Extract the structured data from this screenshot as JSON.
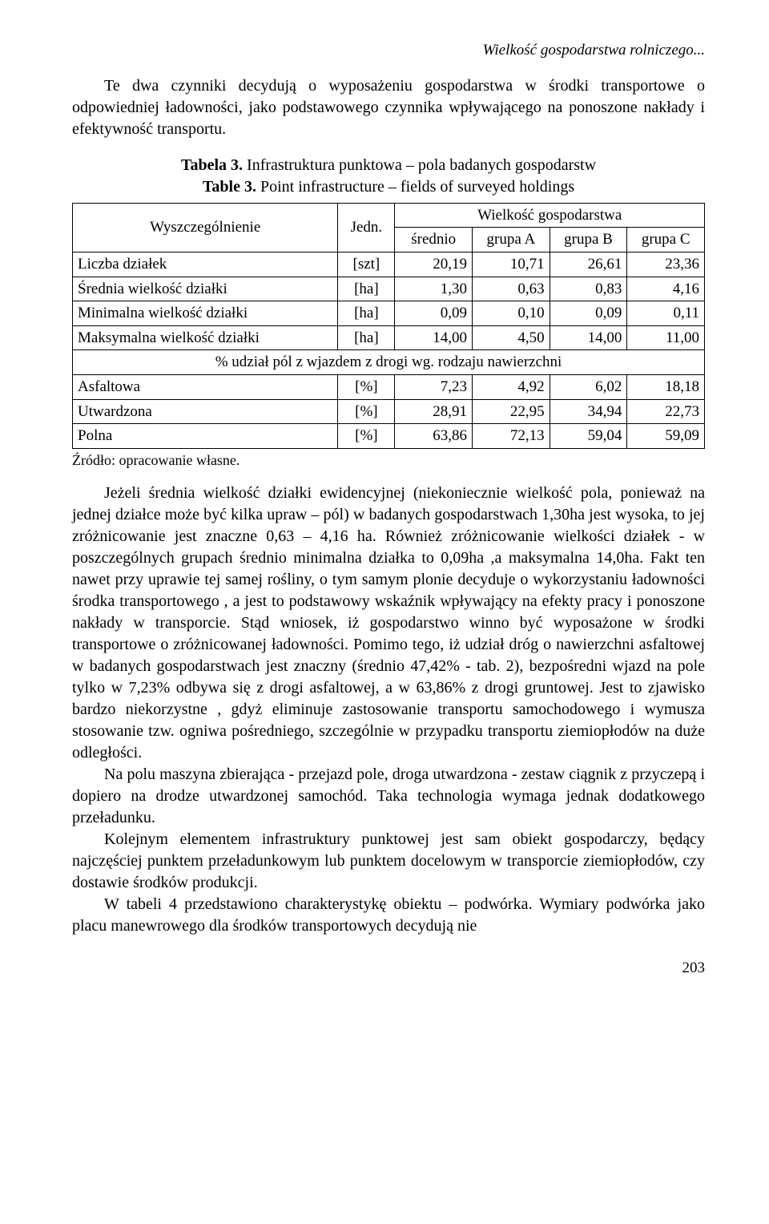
{
  "running_head": "Wielkość gospodarstwa rolniczego...",
  "para1": "Te dwa czynniki decydują o wyposażeniu gospodarstwa w środki transportowe o odpowiedniej ładowności, jako podstawowego czynnika wpływającego na ponoszone nakłady i efektywność transportu.",
  "caption": {
    "label_pl": "Tabela 3.",
    "title_pl": "Infrastruktura punktowa – pola badanych gospodarstw",
    "label_en": "Table 3.",
    "title_en": "Point infrastructure – fields of surveyed holdings"
  },
  "table": {
    "header": {
      "col1": "Wyszczególnienie",
      "col2": "Jedn.",
      "group_header": "Wielkość gospodarstwa",
      "sub": [
        "średnio",
        "grupa A",
        "grupa B",
        "grupa C"
      ]
    },
    "rows_top": [
      {
        "label": "Liczba działek",
        "unit": "[szt]",
        "vals": [
          "20,19",
          "10,71",
          "26,61",
          "23,36"
        ]
      },
      {
        "label": "Średnia wielkość działki",
        "unit": "[ha]",
        "vals": [
          "1,30",
          "0,63",
          "0,83",
          "4,16"
        ]
      },
      {
        "label": "Minimalna wielkość działki",
        "unit": "[ha]",
        "vals": [
          "0,09",
          "0,10",
          "0,09",
          "0,11"
        ]
      },
      {
        "label": "Maksymalna wielkość działki",
        "unit": "[ha]",
        "vals": [
          "14,00",
          "4,50",
          "14,00",
          "11,00"
        ]
      }
    ],
    "mid_span": "% udział pól z wjazdem z drogi wg. rodzaju nawierzchni",
    "rows_bottom": [
      {
        "label": "Asfaltowa",
        "unit": "[%]",
        "vals": [
          "7,23",
          "4,92",
          "6,02",
          "18,18"
        ]
      },
      {
        "label": "Utwardzona",
        "unit": "[%]",
        "vals": [
          "28,91",
          "22,95",
          "34,94",
          "22,73"
        ]
      },
      {
        "label": "Polna",
        "unit": "[%]",
        "vals": [
          "63,86",
          "72,13",
          "59,04",
          "59,09"
        ]
      }
    ]
  },
  "source": "Źródło: opracowanie własne.",
  "para2": "Jeżeli średnia wielkość działki ewidencyjnej (niekoniecznie wielkość pola, ponieważ na jednej działce może być kilka upraw – pól) w badanych gospodarstwach 1,30ha jest wysoka, to jej zróżnicowanie jest znaczne 0,63 – 4,16 ha. Również zróżnicowanie wielkości działek - w poszczególnych grupach średnio minimalna działka to 0,09ha ,a maksymalna 14,0ha. Fakt ten nawet przy uprawie tej samej rośliny, o tym samym plonie decyduje o wykorzystaniu ładowności środka transportowego , a jest to podstawowy wskaźnik wpływający na efekty pracy i ponoszone nakłady w transporcie. Stąd wniosek, iż gospodarstwo winno być wyposażone w środki transportowe o zróżnicowanej ładowności. Pomimo tego, iż udział dróg o nawierzchni asfaltowej w badanych gospodarstwach jest znaczny (średnio 47,42% - tab. 2), bezpośredni wjazd na pole tylko w 7,23% odbywa się z drogi asfaltowej, a  w 63,86% z drogi gruntowej. Jest to zjawisko bardzo niekorzystne , gdyż eliminuje zastosowanie transportu samochodowego i wymusza stosowanie tzw. ogniwa pośredniego, szczególnie w przypadku transportu ziemiopłodów na duże odległości.",
  "para3": "Na polu maszyna zbierająca - przejazd pole, droga utwardzona - zestaw ciągnik z przyczepą i dopiero na drodze utwardzonej samochód. Taka technologia wymaga jednak dodatkowego przeładunku.",
  "para4": "Kolejnym elementem infrastruktury punktowej jest sam obiekt gospodarczy, będący najczęściej punktem przeładunkowym lub punktem docelowym w transporcie ziemiopłodów, czy dostawie środków produkcji.",
  "para5": "W tabeli 4 przedstawiono charakterystykę obiektu – podwórka. Wymiary podwórka jako placu manewrowego dla środków transportowych decydują nie",
  "page_number": "203"
}
